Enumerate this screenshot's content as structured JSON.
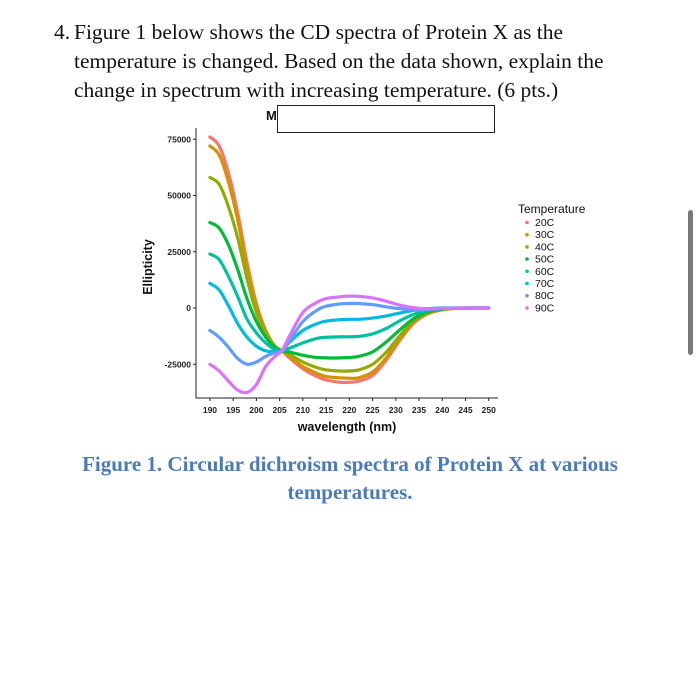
{
  "question": {
    "number": "4.",
    "text": "Figure 1 below shows the CD spectra of Protein X as the temperature is changed. Based on the data shown, explain the change in spectrum with increasing temperature. (6 pts.)"
  },
  "chart_header_fragment": "M",
  "caption": "Figure 1. Circular dichroism spectra of Protein X at various temperatures.",
  "chart_data": {
    "type": "line",
    "title": "",
    "xlabel": "wavelength (nm)",
    "ylabel": "Ellipticity",
    "xlim": [
      187,
      252
    ],
    "ylim": [
      -40000,
      80000
    ],
    "x_ticks": [
      190,
      195,
      200,
      205,
      210,
      215,
      220,
      225,
      230,
      235,
      240,
      245,
      250
    ],
    "y_ticks": [
      -25000,
      0,
      25000,
      50000,
      75000
    ],
    "y_tick_labels": [
      "-25000",
      "0",
      "25000",
      "50000",
      "75000"
    ],
    "grid": false,
    "legend_title": "Temperature",
    "legend_position": "right",
    "x": [
      190,
      192,
      194,
      196,
      198,
      200,
      202,
      204,
      205.5,
      207,
      210,
      213,
      215,
      218,
      220,
      222,
      225,
      228,
      231,
      234,
      237,
      240,
      243,
      246,
      250
    ],
    "series": [
      {
        "name": "20C",
        "color": "#F8766D",
        "values": [
          76000,
          72000,
          60000,
          42000,
          20000,
          2000,
          -10000,
          -17500,
          -19000,
          -22000,
          -27000,
          -30500,
          -32000,
          -33000,
          -33000,
          -32500,
          -30000,
          -23000,
          -14000,
          -6500,
          -2500,
          -800,
          -200,
          0,
          0
        ]
      },
      {
        "name": "30C",
        "color": "#D39200",
        "values": [
          72000,
          68000,
          56000,
          39000,
          18000,
          1000,
          -10000,
          -17000,
          -19000,
          -21500,
          -26000,
          -29000,
          -30500,
          -31000,
          -31200,
          -31000,
          -28500,
          -22000,
          -13500,
          -6000,
          -2300,
          -700,
          -200,
          0,
          0
        ]
      },
      {
        "name": "40C",
        "color": "#93AA00",
        "values": [
          58000,
          55000,
          45000,
          31000,
          13000,
          -2000,
          -11000,
          -17000,
          -19000,
          -20500,
          -24000,
          -26500,
          -27500,
          -28000,
          -28000,
          -27500,
          -25000,
          -19500,
          -12000,
          -5500,
          -2000,
          -600,
          -150,
          0,
          0
        ]
      },
      {
        "name": "50C",
        "color": "#00BA38",
        "values": [
          38000,
          35500,
          28000,
          17000,
          4000,
          -6000,
          -13000,
          -17500,
          -19000,
          -19500,
          -21000,
          -22000,
          -22200,
          -22200,
          -22000,
          -21500,
          -19500,
          -15000,
          -9500,
          -4500,
          -1600,
          -500,
          -100,
          0,
          0
        ]
      },
      {
        "name": "60C",
        "color": "#00C19F",
        "values": [
          24000,
          21500,
          14000,
          5000,
          -5000,
          -11000,
          -15500,
          -18500,
          -19000,
          -18000,
          -15500,
          -13500,
          -13000,
          -12800,
          -12800,
          -12600,
          -11500,
          -9000,
          -5500,
          -2700,
          -1000,
          -300,
          0,
          0,
          0
        ]
      },
      {
        "name": "70C",
        "color": "#00B9E3",
        "values": [
          11000,
          8000,
          1000,
          -7000,
          -13000,
          -17000,
          -19000,
          -19500,
          -19000,
          -15500,
          -10000,
          -7000,
          -5800,
          -5200,
          -5000,
          -5000,
          -4500,
          -3500,
          -2200,
          -1000,
          -300,
          0,
          0,
          0,
          0
        ]
      },
      {
        "name": "80C",
        "color": "#619CFF",
        "values": [
          -10000,
          -13000,
          -17500,
          -22500,
          -25000,
          -24000,
          -21500,
          -19800,
          -19000,
          -15000,
          -6000,
          -1000,
          800,
          1800,
          2000,
          2000,
          1500,
          500,
          -300,
          -800,
          -600,
          -300,
          -100,
          0,
          0
        ]
      },
      {
        "name": "90C",
        "color": "#DB72FB",
        "values": [
          -25000,
          -28000,
          -32500,
          -36500,
          -37500,
          -34000,
          -26000,
          -21500,
          -19000,
          -13000,
          -2000,
          2500,
          4200,
          5000,
          5300,
          5200,
          4500,
          3000,
          1200,
          100,
          -300,
          -200,
          -50,
          0,
          0
        ]
      }
    ]
  }
}
